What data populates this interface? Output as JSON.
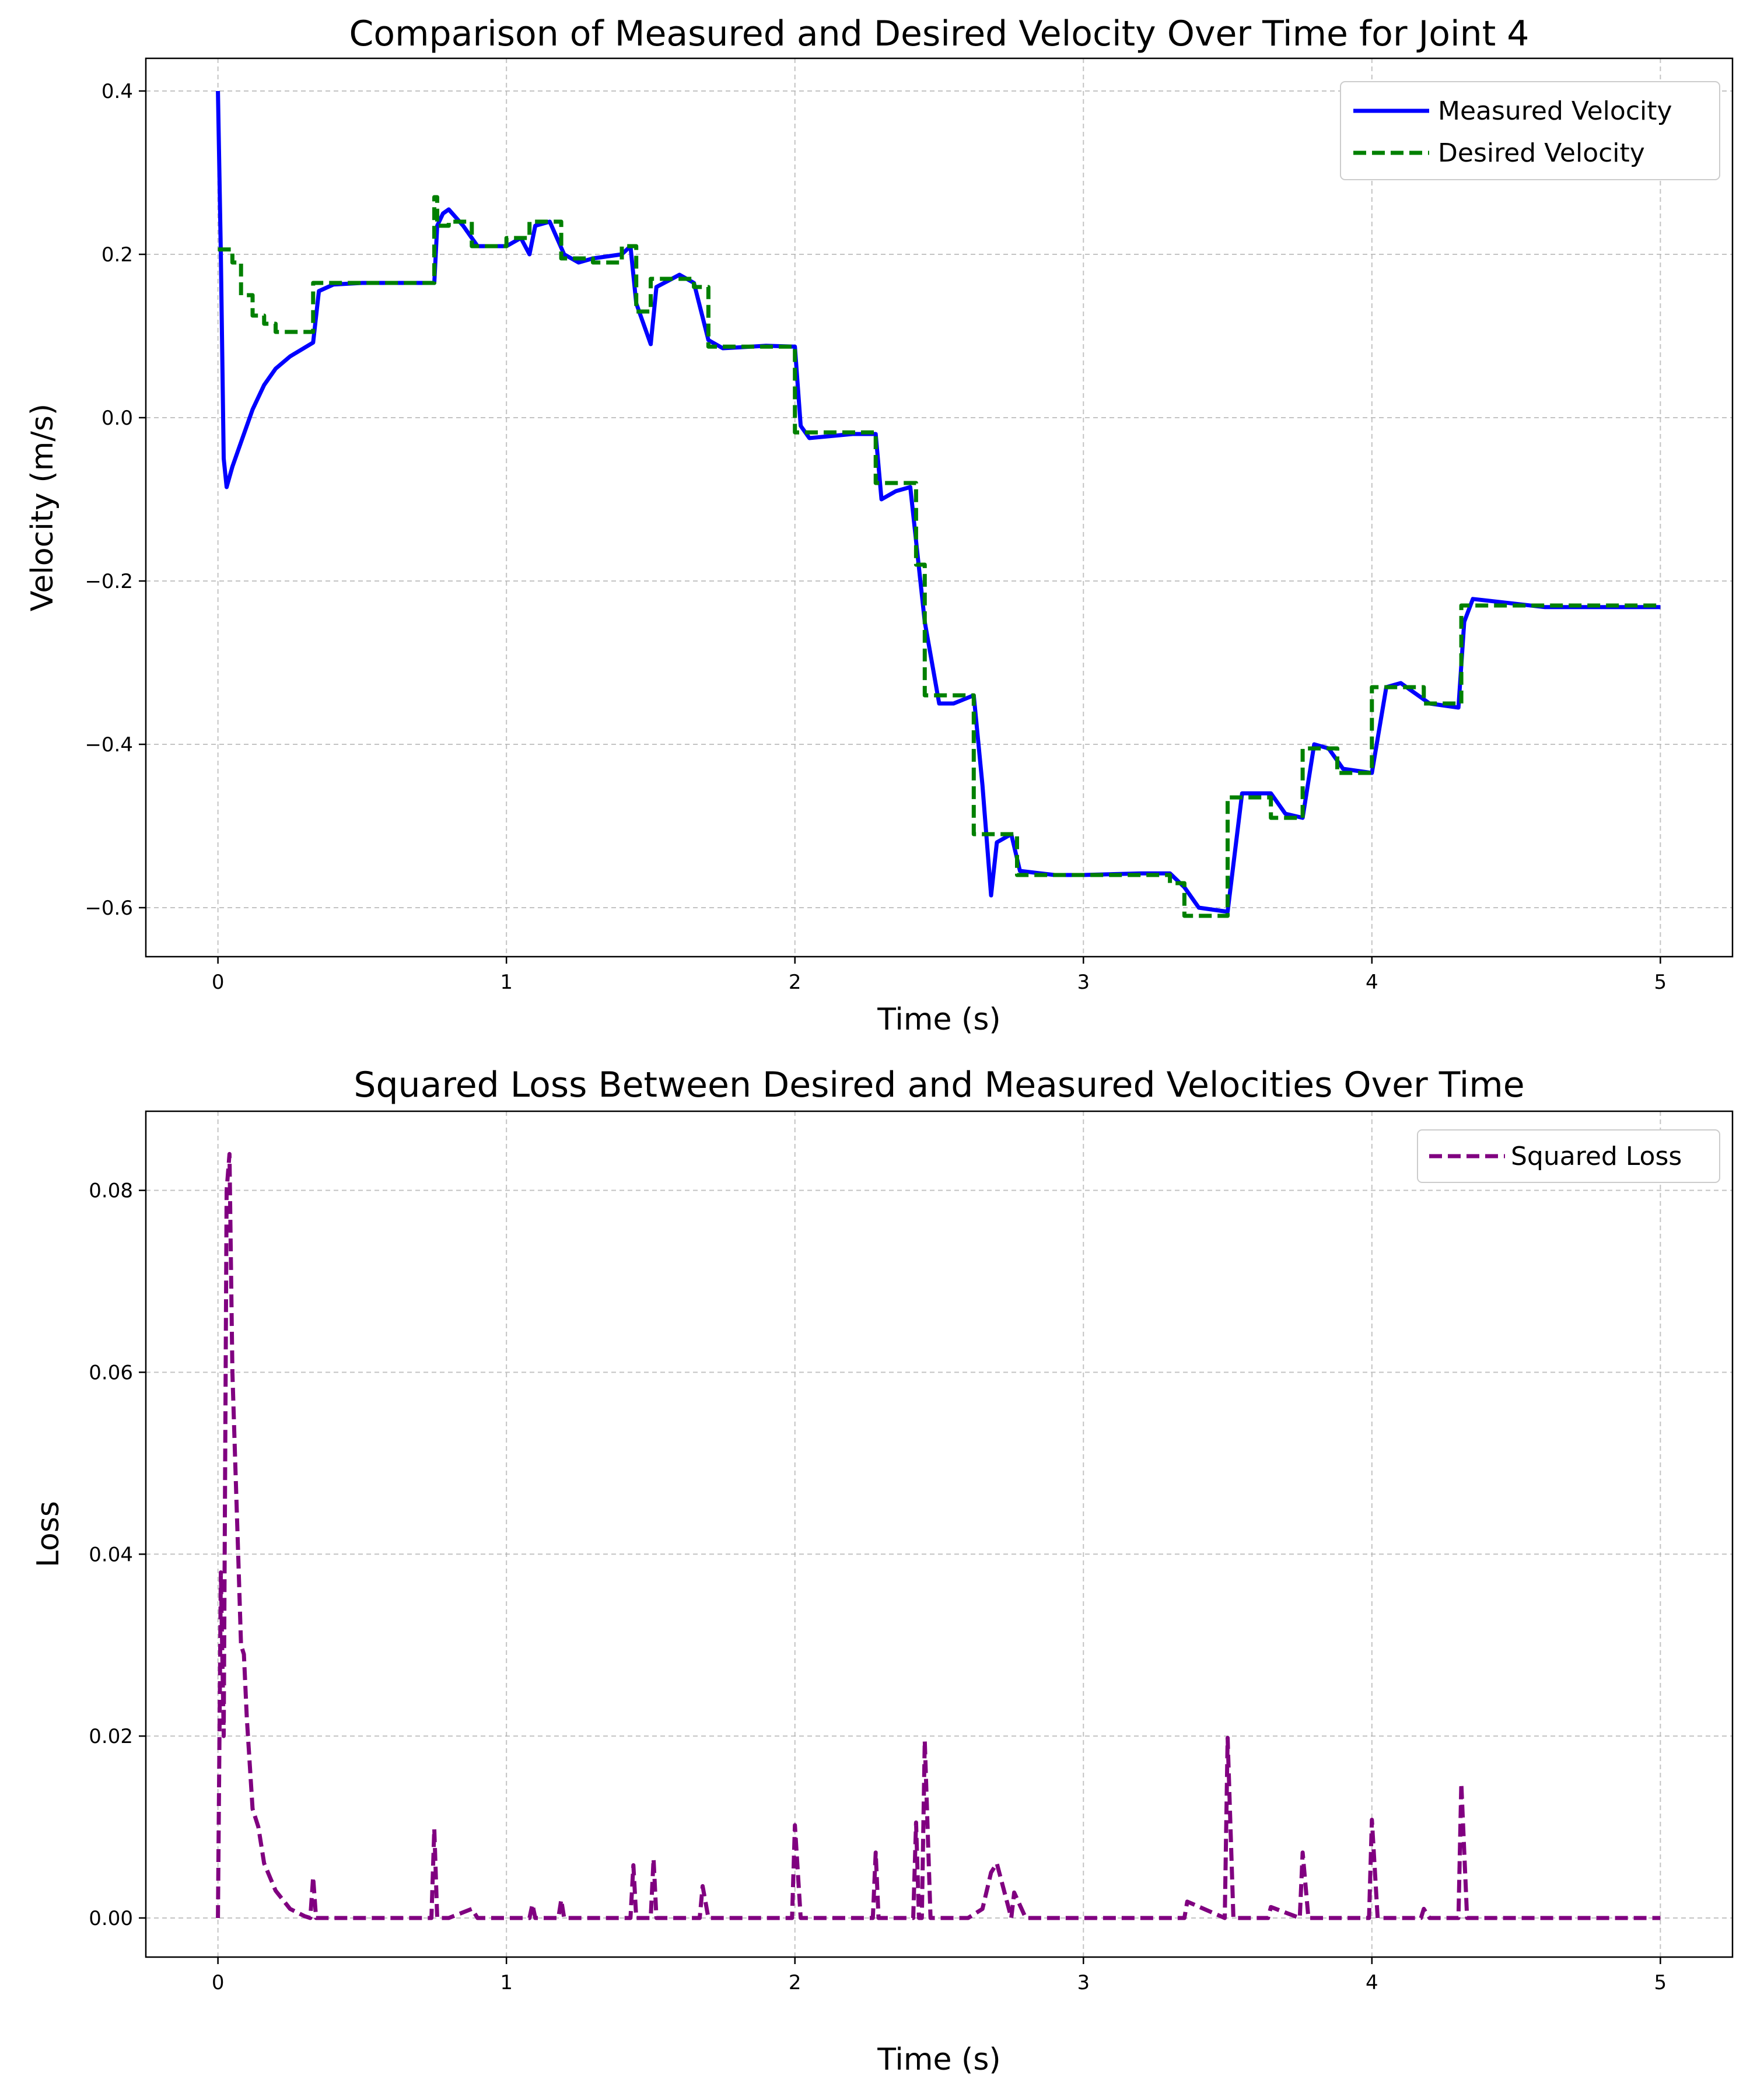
{
  "chart_data": [
    {
      "type": "line",
      "title": "Comparison of Measured and Desired Velocity Over Time for Joint 4",
      "xlabel": "Time (s)",
      "ylabel": "Velocity (m/s)",
      "xlim": [
        -0.25,
        5.25
      ],
      "ylim": [
        -0.66,
        0.44
      ],
      "xticks": [
        0,
        1,
        2,
        3,
        4,
        5
      ],
      "xtick_labels": [
        "0",
        "1",
        "2",
        "3",
        "4",
        "5"
      ],
      "yticks": [
        0.4,
        0.2,
        0.0,
        -0.2,
        -0.4,
        -0.6
      ],
      "ytick_labels": [
        "0.4",
        "0.2",
        "0.0",
        "−0.2",
        "−0.4",
        "−0.6"
      ],
      "grid": true,
      "legend_position": "top-right",
      "series": [
        {
          "name": "Measured Velocity",
          "color": "#0000ff",
          "style": "solid",
          "x": [
            0,
            0.01,
            0.02,
            0.03,
            0.05,
            0.08,
            0.12,
            0.16,
            0.2,
            0.25,
            0.33,
            0.35,
            0.4,
            0.5,
            0.6,
            0.75,
            0.76,
            0.78,
            0.8,
            0.85,
            0.9,
            1.0,
            1.05,
            1.08,
            1.1,
            1.15,
            1.2,
            1.25,
            1.3,
            1.4,
            1.43,
            1.45,
            1.5,
            1.52,
            1.6,
            1.65,
            1.7,
            1.75,
            1.9,
            2.0,
            2.02,
            2.05,
            2.2,
            2.28,
            2.3,
            2.35,
            2.4,
            2.45,
            2.5,
            2.55,
            2.62,
            2.65,
            2.68,
            2.7,
            2.75,
            2.78,
            2.9,
            3.0,
            3.2,
            3.3,
            3.35,
            3.4,
            3.5,
            3.55,
            3.65,
            3.7,
            3.76,
            3.8,
            3.85,
            3.9,
            4.0,
            4.05,
            4.1,
            4.2,
            4.3,
            4.32,
            4.35,
            4.5,
            4.6,
            5.0
          ],
          "y": [
            0.4,
            0.2,
            -0.05,
            -0.085,
            -0.06,
            -0.03,
            0.01,
            0.04,
            0.06,
            0.075,
            0.092,
            0.155,
            0.163,
            0.165,
            0.165,
            0.165,
            0.235,
            0.25,
            0.255,
            0.235,
            0.21,
            0.21,
            0.22,
            0.2,
            0.235,
            0.24,
            0.2,
            0.19,
            0.195,
            0.2,
            0.21,
            0.14,
            0.09,
            0.16,
            0.175,
            0.165,
            0.095,
            0.085,
            0.088,
            0.087,
            -0.01,
            -0.025,
            -0.02,
            -0.02,
            -0.1,
            -0.09,
            -0.085,
            -0.25,
            -0.35,
            -0.35,
            -0.34,
            -0.45,
            -0.585,
            -0.52,
            -0.51,
            -0.555,
            -0.56,
            -0.56,
            -0.558,
            -0.558,
            -0.575,
            -0.6,
            -0.605,
            -0.46,
            -0.46,
            -0.485,
            -0.49,
            -0.4,
            -0.405,
            -0.43,
            -0.435,
            -0.33,
            -0.325,
            -0.35,
            -0.355,
            -0.25,
            -0.222,
            -0.228,
            -0.232,
            -0.232
          ]
        },
        {
          "name": "Desired Velocity",
          "color": "#008000",
          "style": "dashed",
          "x": [
            0,
            0.05,
            0.05,
            0.08,
            0.08,
            0.12,
            0.12,
            0.16,
            0.16,
            0.2,
            0.2,
            0.33,
            0.33,
            0.75,
            0.75,
            0.76,
            0.76,
            0.8,
            0.8,
            0.88,
            0.88,
            1.0,
            1.0,
            1.08,
            1.08,
            1.19,
            1.19,
            1.3,
            1.3,
            1.4,
            1.4,
            1.45,
            1.45,
            1.5,
            1.5,
            1.65,
            1.65,
            1.7,
            1.7,
            2.0,
            2.0,
            2.28,
            2.28,
            2.42,
            2.42,
            2.45,
            2.45,
            2.62,
            2.62,
            2.65,
            2.65,
            2.77,
            2.77,
            3.3,
            3.3,
            3.35,
            3.35,
            3.5,
            3.5,
            3.65,
            3.65,
            3.76,
            3.76,
            3.88,
            3.88,
            4.0,
            4.0,
            4.18,
            4.18,
            4.31,
            4.31,
            5.0
          ],
          "y": [
            0.206,
            0.206,
            0.19,
            0.19,
            0.15,
            0.15,
            0.125,
            0.125,
            0.115,
            0.115,
            0.105,
            0.105,
            0.165,
            0.165,
            0.27,
            0.27,
            0.235,
            0.235,
            0.24,
            0.24,
            0.21,
            0.21,
            0.22,
            0.22,
            0.24,
            0.24,
            0.195,
            0.195,
            0.19,
            0.19,
            0.21,
            0.21,
            0.13,
            0.13,
            0.17,
            0.17,
            0.16,
            0.16,
            0.087,
            0.087,
            -0.018,
            -0.018,
            -0.08,
            -0.08,
            -0.18,
            -0.18,
            -0.34,
            -0.34,
            -0.51,
            -0.51,
            -0.51,
            -0.51,
            -0.56,
            -0.56,
            -0.57,
            -0.57,
            -0.61,
            -0.61,
            -0.465,
            -0.465,
            -0.49,
            -0.49,
            -0.405,
            -0.405,
            -0.435,
            -0.435,
            -0.33,
            -0.33,
            -0.35,
            -0.35,
            -0.23,
            -0.23
          ]
        }
      ]
    },
    {
      "type": "line",
      "title": "Squared Loss Between Desired and Measured Velocities Over Time",
      "xlabel": "Time (s)",
      "ylabel": "Loss",
      "xlim": [
        -0.25,
        5.25
      ],
      "ylim": [
        -0.0043,
        0.0887
      ],
      "xticks": [
        0,
        1,
        2,
        3,
        4,
        5
      ],
      "xtick_labels": [
        "0",
        "1",
        "2",
        "3",
        "4",
        "5"
      ],
      "yticks": [
        0.08,
        0.06,
        0.04,
        0.02,
        0.0
      ],
      "ytick_labels": [
        "0.08",
        "0.06",
        "0.04",
        "0.02",
        "0.00"
      ],
      "grid": true,
      "legend_position": "top-right",
      "series": [
        {
          "name": "Squared Loss",
          "color": "#800080",
          "style": "dashed",
          "x": [
            0,
            0.01,
            0.02,
            0.03,
            0.04,
            0.05,
            0.06,
            0.07,
            0.08,
            0.09,
            0.1,
            0.12,
            0.14,
            0.16,
            0.2,
            0.25,
            0.3,
            0.32,
            0.33,
            0.34,
            0.4,
            0.74,
            0.75,
            0.76,
            0.8,
            0.88,
            0.9,
            1.08,
            1.09,
            1.1,
            1.18,
            1.19,
            1.2,
            1.43,
            1.44,
            1.45,
            1.5,
            1.51,
            1.52,
            1.67,
            1.68,
            1.7,
            1.99,
            2.0,
            2.02,
            2.27,
            2.28,
            2.29,
            2.41,
            2.42,
            2.43,
            2.44,
            2.45,
            2.47,
            2.6,
            2.65,
            2.68,
            2.7,
            2.75,
            2.76,
            2.8,
            3.35,
            3.36,
            3.49,
            3.5,
            3.52,
            3.64,
            3.65,
            3.75,
            3.76,
            3.78,
            3.99,
            4.0,
            4.02,
            4.17,
            4.18,
            4.2,
            4.3,
            4.31,
            4.33,
            5.0
          ],
          "y": [
            0.0,
            0.038,
            0.02,
            0.08,
            0.084,
            0.06,
            0.05,
            0.04,
            0.03,
            0.029,
            0.022,
            0.012,
            0.01,
            0.006,
            0.003,
            0.001,
            0.0002,
            0.0,
            0.0045,
            0.0,
            0.0,
            0.0,
            0.0098,
            0.0,
            0.0,
            0.001,
            0.0,
            0.0,
            0.0015,
            0.0,
            0.0,
            0.002,
            0.0,
            0.0,
            0.0058,
            0.0,
            0.0,
            0.0065,
            0.0,
            0.0,
            0.0035,
            0.0,
            0.0,
            0.0102,
            0.0,
            0.0,
            0.0072,
            0.0,
            0.0,
            0.0105,
            0.0,
            0.0,
            0.0195,
            0.0,
            0.0,
            0.001,
            0.005,
            0.006,
            0.0,
            0.0028,
            0.0,
            0.0,
            0.0018,
            0.0,
            0.0198,
            0.0,
            0.0,
            0.0012,
            0.0,
            0.0072,
            0.0,
            0.0,
            0.0108,
            0.0,
            0.0,
            0.001,
            0.0,
            0.0,
            0.0148,
            0.0,
            0.0
          ]
        }
      ]
    }
  ]
}
